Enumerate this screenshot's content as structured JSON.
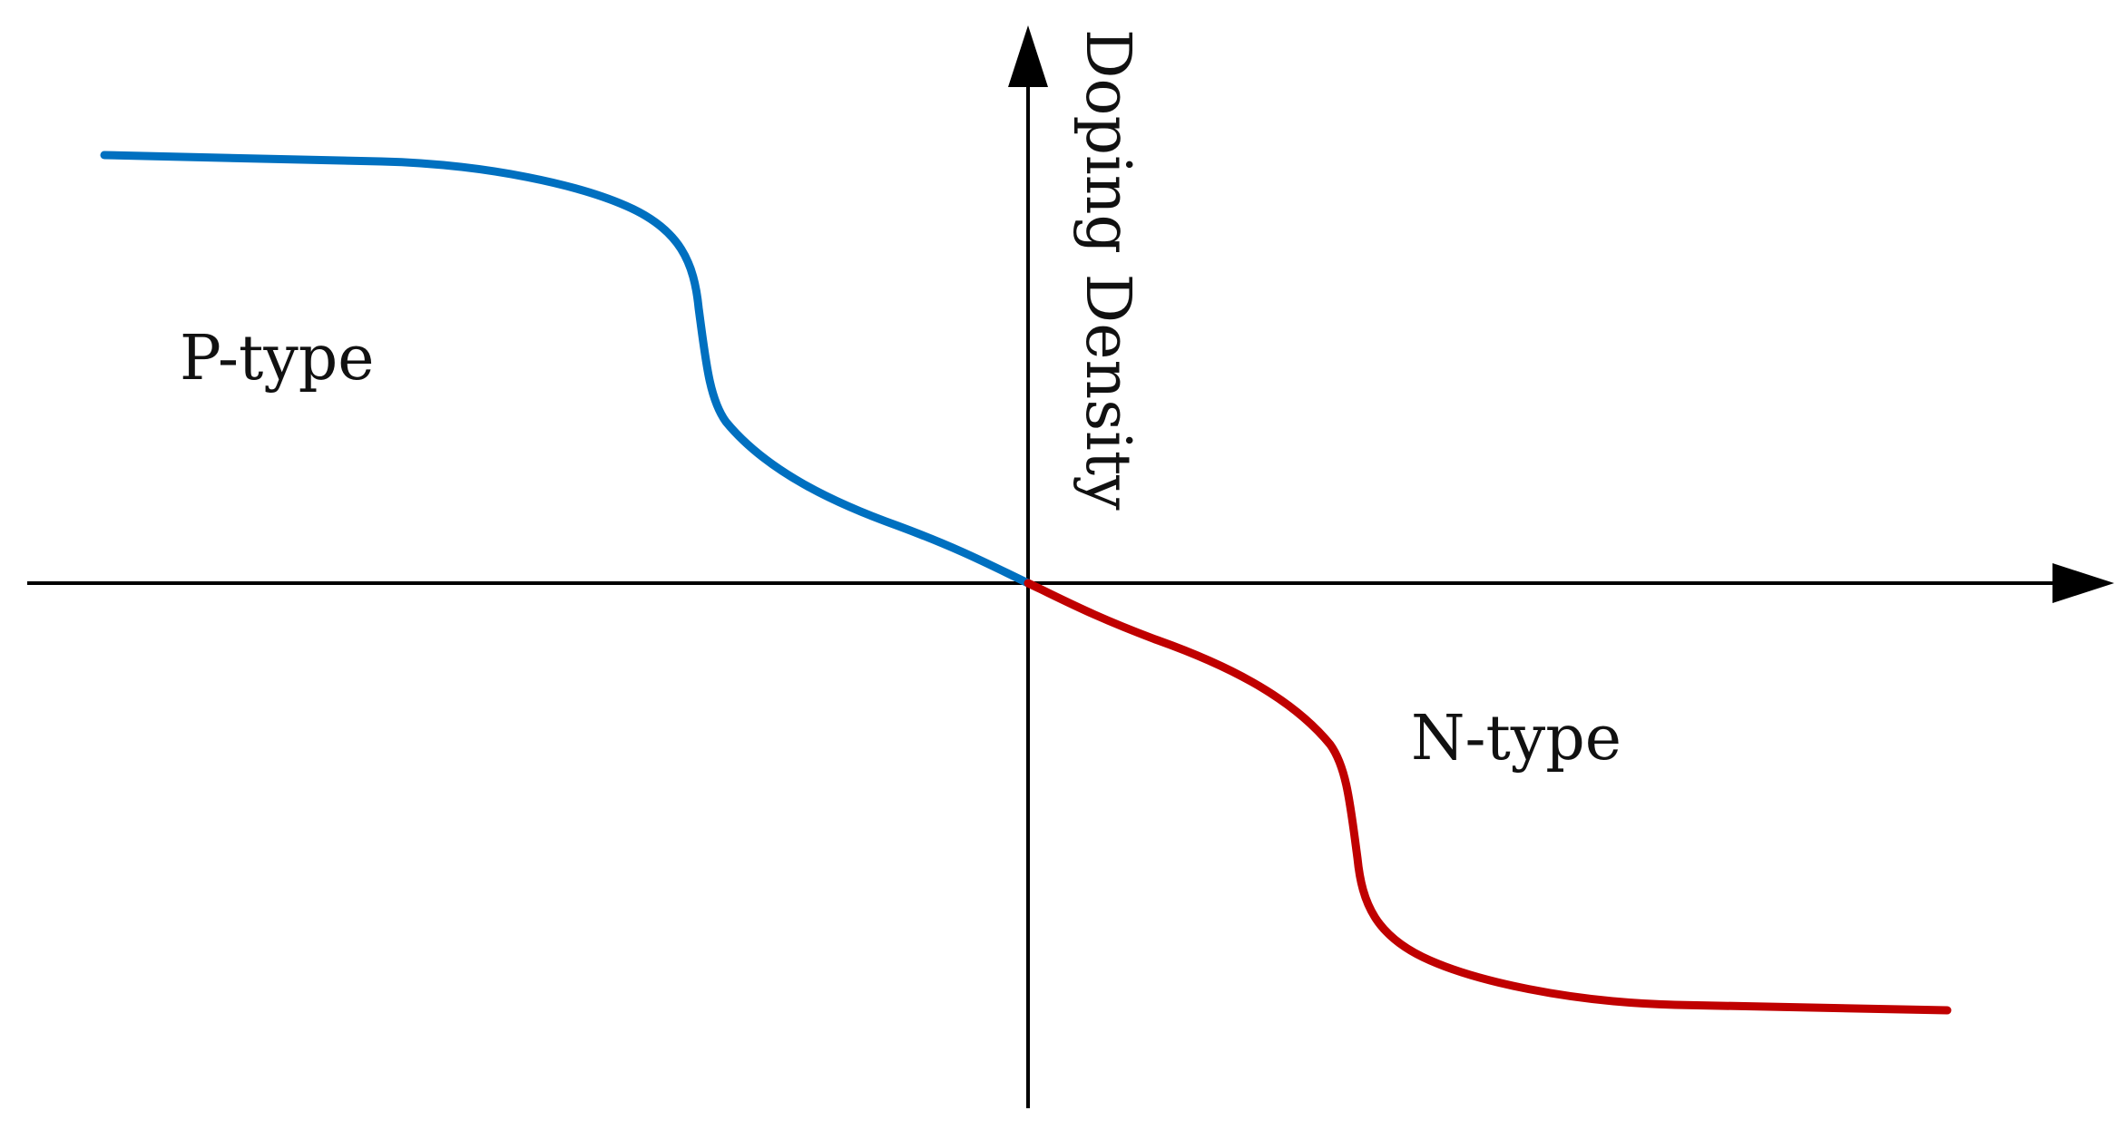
{
  "diagram": {
    "axis_title": "Doping Density",
    "regions": {
      "p_type": {
        "label": "P-type",
        "color": "#0070c0"
      },
      "n_type": {
        "label": "N-type",
        "color": "#c00000"
      }
    },
    "axis_color": "#000000",
    "background": "#ffffff"
  }
}
